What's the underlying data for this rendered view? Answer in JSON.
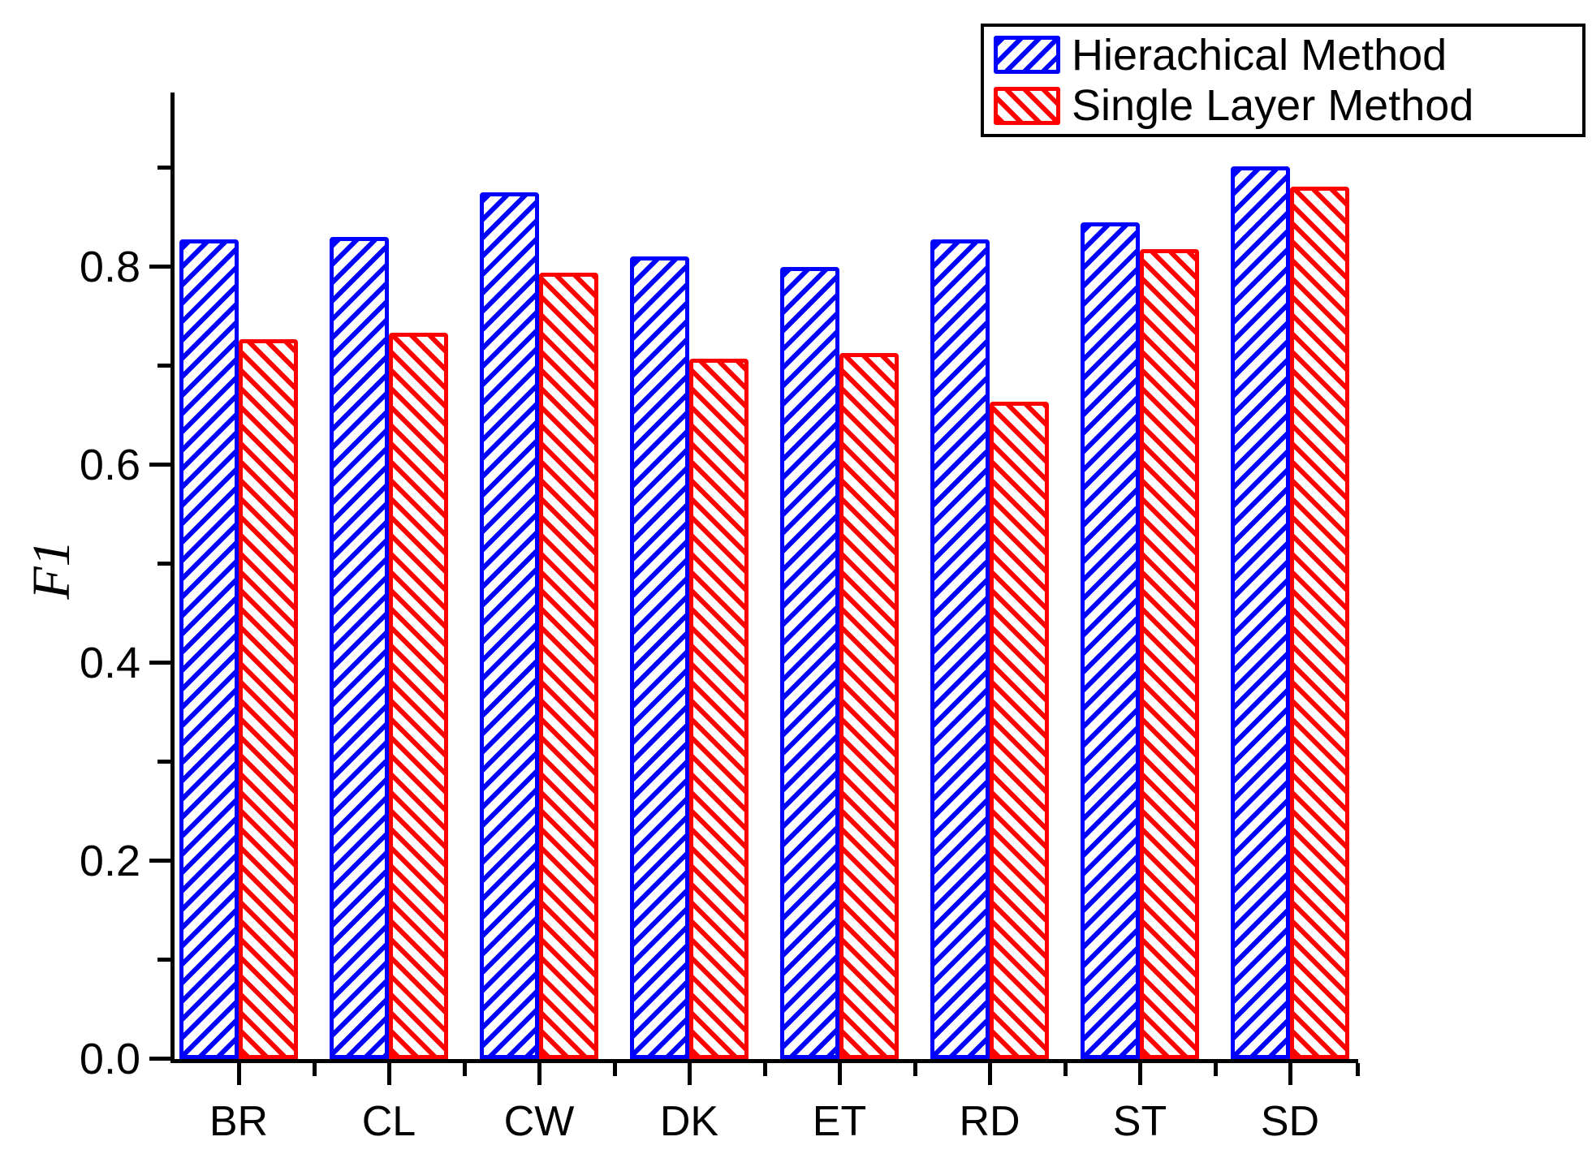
{
  "chart_data": {
    "type": "bar",
    "title": "",
    "ylabel": "F1",
    "xlabel": "",
    "categories": [
      "BR",
      "CL",
      "CW",
      "DK",
      "ET",
      "RD",
      "ST",
      "SD"
    ],
    "series": [
      {
        "name": "Hierachical Method",
        "color": "#0000ff",
        "hatch": "/",
        "values": [
          0.828,
          0.83,
          0.875,
          0.811,
          0.8,
          0.828,
          0.845,
          0.902
        ]
      },
      {
        "name": "Single Layer Method",
        "color": "#ff0000",
        "hatch": "\\",
        "values": [
          0.727,
          0.734,
          0.794,
          0.707,
          0.713,
          0.664,
          0.818,
          0.881
        ]
      }
    ],
    "ylim": [
      0,
      0.976
    ],
    "yticks_major": [
      0.0,
      0.2,
      0.4,
      0.6,
      0.8
    ],
    "ytick_labels": [
      "0.0",
      "0.2",
      "0.4",
      "0.6",
      "0.8"
    ],
    "yticks_minor": [
      0.1,
      0.3,
      0.5,
      0.7,
      0.9
    ],
    "grid": false,
    "legend_position": "top-right",
    "background_color": "#ffffff",
    "axis_color": "#000000"
  }
}
